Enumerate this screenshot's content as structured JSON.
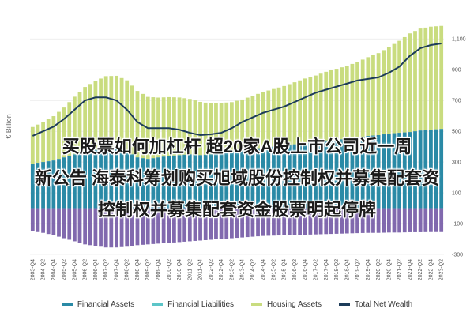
{
  "headline": {
    "line1": "买股票如何加杠杆 超20家A股上市公司近一周",
    "line2": "新公告 海泰科筹划购买旭域股份控制权并募集配套资",
    "line3": "控制权并募集配套资金股票明起停牌"
  },
  "colors": {
    "financial_assets": "#2a8aa6",
    "financial_liabilities": "#5cc5c8",
    "housing_assets": "#c9dc7f",
    "total_net_wealth": "#1d3c5a",
    "negative_bars": "#6b4fa0",
    "neutral_bars": "#c8c8c8"
  },
  "chart_data": {
    "type": "bar",
    "ylabel": "€ Billion",
    "ylim": [
      -300,
      1250
    ],
    "yticks": [
      -300,
      -100,
      100,
      300,
      500,
      700,
      900,
      1100
    ],
    "ytick_labels": [
      "-300",
      "-100",
      "100",
      "300",
      "500",
      "700",
      "900",
      "1,100"
    ],
    "x_start": "2003-Q4",
    "x_end": "2023-Q2",
    "quarter_step": 2,
    "categories": [
      "2003-Q4",
      "2004-Q2",
      "2004-Q4",
      "2005-Q2",
      "2005-Q4",
      "2006-Q2",
      "2006-Q4",
      "2007-Q2",
      "2007-Q4",
      "2008-Q2",
      "2008-Q4",
      "2009-Q2",
      "2009-Q4",
      "2010-Q2",
      "2010-Q4",
      "2011-Q2",
      "2011-Q4",
      "2012-Q2",
      "2012-Q4",
      "2013-Q2",
      "2013-Q4",
      "2014-Q2",
      "2014-Q4",
      "2015-Q2",
      "2015-Q4",
      "2016-Q2",
      "2016-Q4",
      "2017-Q2",
      "2017-Q4",
      "2018-Q2",
      "2018-Q4",
      "2019-Q2",
      "2019-Q4",
      "2020-Q2",
      "2020-Q4",
      "2021-Q2",
      "2021-Q4",
      "2022-Q2",
      "2022-Q4",
      "2023-Q2"
    ],
    "series": [
      {
        "name": "Financial Assets",
        "values": [
          290,
          300,
          310,
          330,
          350,
          370,
          380,
          390,
          385,
          370,
          330,
          320,
          330,
          340,
          345,
          350,
          345,
          350,
          360,
          365,
          375,
          385,
          395,
          400,
          405,
          415,
          425,
          430,
          440,
          445,
          450,
          460,
          470,
          475,
          485,
          490,
          495,
          505,
          510,
          515
        ]
      },
      {
        "name": "Financial Liabilities",
        "values": [
          -150,
          -160,
          -175,
          -195,
          -215,
          -235,
          -245,
          -255,
          -255,
          -250,
          -240,
          -235,
          -230,
          -225,
          -220,
          -215,
          -210,
          -205,
          -200,
          -195,
          -190,
          -185,
          -180,
          -178,
          -176,
          -174,
          -172,
          -170,
          -168,
          -166,
          -164,
          -162,
          -160,
          -160,
          -158,
          -158,
          -156,
          -156,
          -155,
          -155
        ]
      },
      {
        "name": "Housing Assets",
        "values": [
          330,
          360,
          400,
          450,
          520,
          580,
          620,
          650,
          660,
          640,
          600,
          560,
          540,
          530,
          520,
          500,
          480,
          460,
          450,
          450,
          460,
          480,
          500,
          520,
          540,
          560,
          580,
          600,
          620,
          640,
          660,
          680,
          710,
          740,
          780,
          830,
          890,
          920,
          930,
          930
        ]
      },
      {
        "name": "Total Net Wealth",
        "values": [
          470,
          500,
          530,
          580,
          640,
          700,
          720,
          720,
          700,
          640,
          560,
          520,
          520,
          520,
          510,
          490,
          475,
          480,
          490,
          520,
          560,
          590,
          620,
          640,
          660,
          690,
          720,
          750,
          770,
          790,
          810,
          830,
          840,
          850,
          880,
          920,
          990,
          1040,
          1060,
          1070
        ]
      }
    ],
    "legend_position": "bottom"
  }
}
